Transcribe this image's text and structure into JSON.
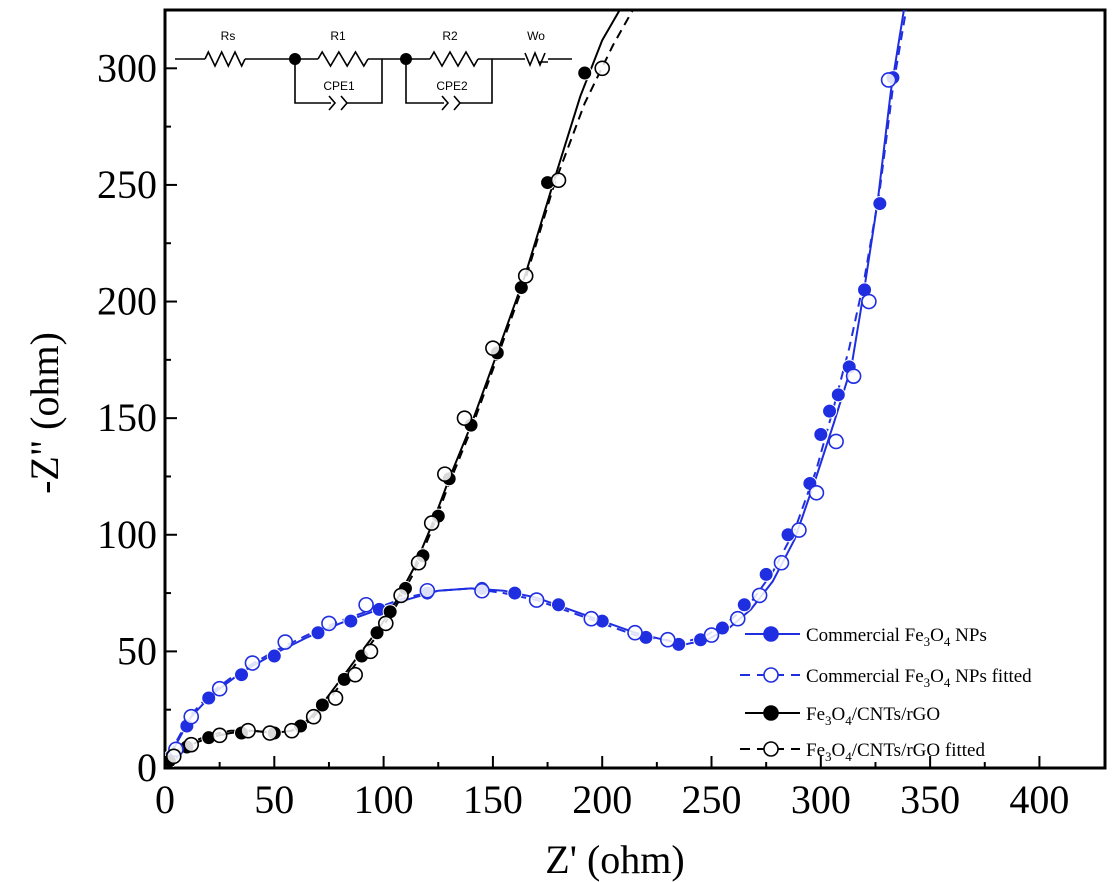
{
  "chart_data": {
    "type": "scatter",
    "title": "",
    "xlabel": "Z' (ohm)",
    "ylabel": "-Z\" (ohm)",
    "xlim": [
      0,
      430
    ],
    "ylim": [
      0,
      325
    ],
    "x_ticks": [
      0,
      50,
      100,
      150,
      200,
      250,
      300,
      350,
      400
    ],
    "y_ticks": [
      0,
      50,
      100,
      150,
      200,
      250,
      300
    ],
    "grid": false,
    "legend_position": "bottom-right",
    "series": [
      {
        "name": "Commercial Fe3O4 NPs",
        "legend_parts": {
          "pre": "Commercial Fe",
          "sub1": "3",
          "mid": "O",
          "sub2": "4",
          "post": " NPs"
        },
        "color": "#1f2ee0",
        "marker": "filled-circle",
        "line": "solid",
        "x": [
          3,
          10,
          20,
          35,
          50,
          70,
          85,
          98,
          120,
          145,
          160,
          180,
          200,
          220,
          235,
          245,
          255,
          265,
          275,
          285,
          295,
          300,
          304,
          308,
          313,
          320,
          327,
          333
        ],
        "y": [
          5,
          18,
          30,
          40,
          48,
          58,
          63,
          68,
          75,
          77,
          75,
          70,
          63,
          56,
          53,
          55,
          60,
          70,
          83,
          100,
          122,
          143,
          153,
          160,
          172,
          205,
          242,
          296
        ]
      },
      {
        "name": "Commercial Fe3O4 NPs fitted",
        "legend_parts": {
          "pre": "Commercial Fe",
          "sub1": "3",
          "mid": "O",
          "sub2": "4",
          "post": " NPs fitted"
        },
        "color": "#1f2ee0",
        "marker": "open-circle",
        "line": "dashed",
        "x": [
          5,
          12,
          25,
          40,
          55,
          75,
          92,
          120,
          145,
          170,
          195,
          215,
          230,
          250,
          262,
          272,
          282,
          290,
          298,
          307,
          315,
          322,
          331
        ],
        "y": [
          8,
          22,
          34,
          45,
          54,
          62,
          70,
          76,
          76,
          72,
          64,
          58,
          55,
          57,
          64,
          74,
          88,
          102,
          118,
          140,
          168,
          200,
          295
        ]
      },
      {
        "name": "Fe3O4/CNTs/rGO",
        "legend_parts": {
          "pre": "Fe",
          "sub1": "3",
          "mid": "O",
          "sub2": "4",
          "post": "/CNTs/rGO"
        },
        "color": "#000000",
        "marker": "filled-circle",
        "line": "solid",
        "x": [
          2,
          10,
          20,
          35,
          50,
          62,
          72,
          82,
          90,
          97,
          103,
          110,
          118,
          125,
          130,
          140,
          152,
          163,
          175,
          192
        ],
        "y": [
          3,
          9,
          13,
          15,
          15,
          18,
          27,
          38,
          48,
          58,
          67,
          77,
          91,
          108,
          124,
          147,
          178,
          206,
          251,
          298
        ]
      },
      {
        "name": "Fe3O4/CNTs/rGO fitted",
        "legend_parts": {
          "pre": "Fe",
          "sub1": "3",
          "mid": "O",
          "sub2": "4",
          "post": "/CNTs/rGO fitted"
        },
        "color": "#000000",
        "marker": "open-circle",
        "line": "dashed",
        "x": [
          4,
          12,
          25,
          38,
          48,
          58,
          68,
          78,
          87,
          94,
          101,
          108,
          116,
          122,
          128,
          137,
          150,
          165,
          180,
          200
        ],
        "y": [
          5,
          10,
          14,
          16,
          15,
          16,
          22,
          30,
          40,
          50,
          62,
          74,
          88,
          105,
          126,
          150,
          180,
          211,
          252,
          300
        ]
      }
    ],
    "fit_curves": [
      {
        "of": "Commercial Fe3O4 NPs",
        "color": "#1f2ee0",
        "dash": false,
        "x": [
          0,
          5,
          12,
          22,
          35,
          50,
          65,
          80,
          95,
          110,
          125,
          140,
          155,
          170,
          185,
          200,
          215,
          228,
          238,
          248,
          258,
          268,
          278,
          288,
          298,
          306,
          314,
          320,
          326,
          332,
          338
        ],
        "y": [
          0,
          10,
          22,
          32,
          41,
          49,
          56,
          62,
          67,
          72,
          76,
          77,
          76,
          73,
          68,
          63,
          58,
          55,
          53,
          55,
          60,
          68,
          80,
          98,
          125,
          148,
          172,
          206,
          243,
          290,
          325
        ]
      },
      {
        "of": "Commercial Fe3O4 NPs fitted",
        "color": "#1f2ee0",
        "dash": true,
        "x": [
          0,
          5,
          12,
          22,
          35,
          50,
          65,
          80,
          95,
          110,
          125,
          140,
          155,
          170,
          185,
          200,
          215,
          228,
          238,
          248,
          258,
          268,
          278,
          288,
          298,
          306,
          313,
          320,
          327,
          333,
          339
        ],
        "y": [
          0,
          11,
          23,
          33,
          42,
          50,
          57,
          63,
          68,
          73,
          76,
          77,
          75,
          72,
          67,
          62,
          57,
          55,
          54,
          57,
          63,
          71,
          84,
          102,
          128,
          155,
          180,
          210,
          248,
          292,
          325
        ]
      },
      {
        "of": "Fe3O4/CNTs/rGO",
        "color": "#000000",
        "dash": false,
        "x": [
          0,
          5,
          12,
          20,
          30,
          40,
          50,
          58,
          66,
          74,
          82,
          90,
          98,
          106,
          114,
          122,
          130,
          140,
          152,
          165,
          178,
          190,
          200,
          208
        ],
        "y": [
          0,
          6,
          10,
          13,
          15,
          16,
          15,
          16,
          21,
          30,
          40,
          50,
          60,
          72,
          86,
          104,
          124,
          147,
          178,
          212,
          252,
          288,
          312,
          325
        ]
      },
      {
        "of": "Fe3O4/CNTs/rGO fitted",
        "color": "#000000",
        "dash": true,
        "x": [
          0,
          5,
          12,
          20,
          30,
          40,
          50,
          58,
          66,
          74,
          82,
          90,
          98,
          106,
          114,
          122,
          130,
          140,
          152,
          165,
          178,
          192,
          205,
          214
        ],
        "y": [
          0,
          7,
          11,
          14,
          16,
          16,
          15,
          16,
          20,
          28,
          38,
          48,
          58,
          70,
          84,
          102,
          122,
          145,
          176,
          210,
          250,
          285,
          310,
          325
        ]
      }
    ],
    "circuit": {
      "labels": [
        "Rs",
        "R1",
        "CPE1",
        "R2",
        "CPE2",
        "Wo"
      ]
    }
  }
}
